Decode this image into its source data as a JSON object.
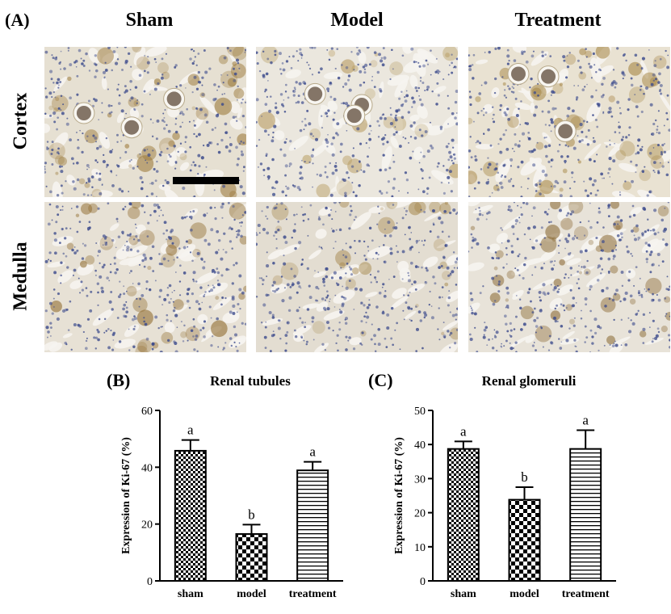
{
  "figure": {
    "panel_a_label": "(A)",
    "columns": [
      "Sham",
      "Model",
      "Treatment"
    ],
    "rows": [
      "Cortex",
      "Medulla"
    ],
    "tissue": [
      {
        "row": 0,
        "col": 0,
        "stain": "#9c7a3c",
        "density": 0.55,
        "bg": "#e6e0d2"
      },
      {
        "row": 0,
        "col": 1,
        "stain": "#b69a5e",
        "density": 0.25,
        "bg": "#ebe7de"
      },
      {
        "row": 0,
        "col": 2,
        "stain": "#a3823f",
        "density": 0.45,
        "bg": "#e9e2d2"
      },
      {
        "row": 1,
        "col": 0,
        "stain": "#8f6a2d",
        "density": 0.4,
        "bg": "#e7e1d5"
      },
      {
        "row": 1,
        "col": 1,
        "stain": "#a88b52",
        "density": 0.3,
        "bg": "#e3ddd1"
      },
      {
        "row": 1,
        "col": 2,
        "stain": "#8b6a35",
        "density": 0.45,
        "bg": "#e8e3d9"
      }
    ],
    "colors": {
      "nuclei": "#3b4a8c",
      "scale_bar": "#000000"
    }
  },
  "chart_data": [
    {
      "type": "bar",
      "panel_label": "(B)",
      "title": "Renal tubules",
      "ylabel": "Expression of Ki-67 (%)",
      "xlabel": "",
      "categories": [
        "sham",
        "model",
        "treatment"
      ],
      "values": [
        45.8,
        16.5,
        38.9
      ],
      "errors": [
        3.8,
        3.3,
        3.0
      ],
      "significance": [
        "a",
        "b",
        "a"
      ],
      "patterns": [
        "checker-fine",
        "checker-coarse",
        "horizontal-lines"
      ],
      "ylim": [
        0,
        60
      ],
      "yticks": [
        0,
        20,
        40,
        60
      ],
      "grid": false
    },
    {
      "type": "bar",
      "panel_label": "(C)",
      "title": "Renal glomeruli",
      "ylabel": "Expression of Ki-67 (%)",
      "xlabel": "",
      "categories": [
        "sham",
        "model",
        "treatment"
      ],
      "values": [
        38.7,
        23.8,
        38.7
      ],
      "errors": [
        2.2,
        3.7,
        5.5
      ],
      "significance": [
        "a",
        "b",
        "a"
      ],
      "patterns": [
        "checker-fine",
        "checker-coarse",
        "horizontal-lines"
      ],
      "ylim": [
        0,
        50
      ],
      "yticks": [
        0,
        10,
        20,
        30,
        40,
        50
      ],
      "grid": false
    }
  ]
}
